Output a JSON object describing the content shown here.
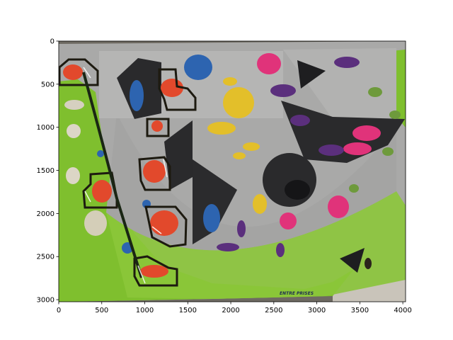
{
  "figure": {
    "x_ticks": [
      "0",
      "500",
      "1000",
      "1500",
      "2000",
      "2500",
      "3000",
      "3500",
      "4000"
    ],
    "y_ticks": [
      "0",
      "500",
      "1000",
      "1500",
      "2000",
      "2500",
      "3000"
    ],
    "x_range": [
      0,
      4032
    ],
    "y_range": [
      3024,
      0
    ],
    "wall_brand_text": "ENTRE PRISES"
  },
  "colors": {
    "wall_gray": "#a9a9a8",
    "wall_green": "#7fbf2e",
    "volume_black": "#2a2a2c",
    "route_outline": "#1d1a10",
    "hold_red": "#e2492c",
    "hold_blue": "#2d64b0",
    "hold_pink": "#e0337a",
    "hold_purple": "#5b2f7d",
    "hold_yellow": "#e3bf2a"
  }
}
